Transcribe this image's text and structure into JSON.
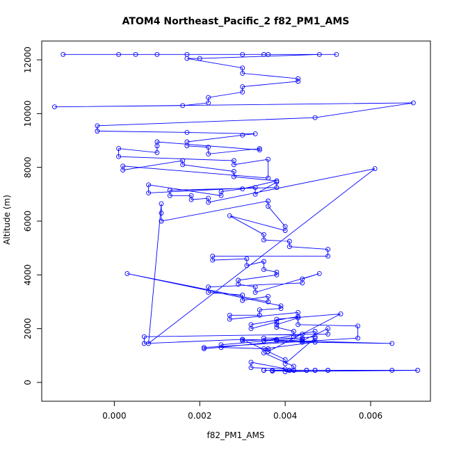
{
  "chart_data": {
    "type": "scatter",
    "title": "ATOM4 Northeast_Pacific_2 f82_PM1_AMS",
    "xlabel": "f82_PM1_AMS",
    "ylabel": "Altitude (m)",
    "xlim": [
      -0.0017,
      0.0074
    ],
    "ylim": [
      -700,
      12700
    ],
    "xticks": [
      0.0,
      0.002,
      0.004,
      0.006
    ],
    "xtick_labels": [
      "0.000",
      "0.002",
      "0.004",
      "0.006"
    ],
    "yticks": [
      0,
      2000,
      4000,
      6000,
      8000,
      10000,
      12000
    ],
    "ytick_labels": [
      "0",
      "2000",
      "4000",
      "6000",
      "8000",
      "10000",
      "12000"
    ],
    "grid": false,
    "legend": "none",
    "color": "#0000ff",
    "marker": "open-circle",
    "connected": true,
    "series": [
      {
        "x": [
          -0.0012,
          0.0001,
          0.0005,
          0.001,
          0.0017,
          0.003,
          0.0035,
          0.0036,
          0.0052,
          0.0048,
          0.002,
          0.0017,
          0.003,
          0.003,
          0.0043,
          0.0043,
          0.003,
          0.003,
          0.0022,
          0.0022,
          0.0016,
          -0.0014,
          0.007,
          0.0047,
          -0.0004,
          -0.0004,
          0.0017,
          0.0033,
          0.003,
          0.0017,
          0.0017,
          0.0022,
          0.0022,
          0.0034,
          0.0034,
          0.001,
          0.001,
          0.001,
          0.0001,
          0.0001,
          0.0028,
          0.0028,
          0.0036,
          0.0036,
          0.0002,
          0.0002,
          0.0016,
          0.0016,
          0.0028,
          0.0028,
          0.0038,
          0.003,
          0.0025,
          0.0025,
          0.0008,
          0.0008,
          0.0033,
          0.0033,
          0.0038,
          0.0038,
          0.0013,
          0.0013,
          0.0018,
          0.0018,
          0.0022,
          0.0022,
          0.0061,
          0.0008,
          0.0011,
          0.0011,
          0.0011,
          0.0036,
          0.0036,
          0.004,
          0.004,
          0.0027,
          0.0035,
          0.0035,
          0.0041,
          0.0041,
          0.005,
          0.005,
          0.0023,
          0.0023,
          0.0031,
          0.0031,
          0.0035,
          0.0035,
          0.0038,
          0.0038,
          0.0029,
          0.0029,
          0.0033,
          0.0033,
          0.0048,
          0.0044,
          0.0044,
          0.0022,
          0.0022,
          0.003,
          0.003,
          0.0036,
          0.0036,
          0.0003,
          0.0039,
          0.0039,
          0.0034,
          0.0034,
          0.0027,
          0.0027,
          0.0043,
          0.0043,
          0.0032,
          0.0032,
          0.0038,
          0.0038,
          0.0042,
          0.0042,
          0.0044,
          0.0044,
          0.0035,
          0.0035,
          0.0047,
          0.0047,
          0.0025,
          0.0025,
          0.0036,
          0.0036,
          0.0053,
          0.0038,
          0.0038,
          0.0043,
          0.0043,
          0.0057,
          0.0057,
          0.0021,
          0.0021,
          0.0044,
          0.0044,
          0.005,
          0.005,
          0.0007,
          0.0007,
          0.003,
          0.003,
          0.0038,
          0.0038,
          0.0044,
          0.0044,
          0.0065,
          0.003,
          0.003,
          0.004,
          0.004,
          0.0047,
          0.0047,
          0.0035,
          0.0035,
          0.0042,
          0.0042,
          0.0032,
          0.0032,
          0.004,
          0.004,
          0.0071,
          0.0065,
          0.0037,
          0.0037,
          0.0047,
          0.0047,
          0.0042,
          0.0042,
          0.0035,
          0.0035,
          0.0041,
          0.0041,
          0.0045,
          0.0045,
          0.005,
          0.005
        ],
        "y": [
          12200,
          12200,
          12200,
          12200,
          12200,
          12200,
          12200,
          12200,
          12200,
          12200,
          12050,
          12050,
          11700,
          11500,
          11300,
          11200,
          11000,
          10800,
          10600,
          10400,
          10300,
          10250,
          10400,
          9850,
          9550,
          9350,
          9300,
          9250,
          9200,
          8950,
          8800,
          8750,
          8500,
          8700,
          8650,
          8950,
          8800,
          8550,
          8700,
          8400,
          8250,
          8100,
          8300,
          7600,
          8050,
          7900,
          8250,
          8100,
          7850,
          7650,
          7500,
          7200,
          7100,
          6950,
          7350,
          7050,
          7250,
          7000,
          7450,
          7250,
          7150,
          6950,
          6950,
          6800,
          6850,
          6700,
          7950,
          1450,
          6650,
          6300,
          6000,
          6750,
          6550,
          5800,
          5650,
          6200,
          5500,
          5300,
          5250,
          5050,
          4950,
          4700,
          4700,
          4550,
          4600,
          4350,
          4500,
          4200,
          4100,
          4000,
          3800,
          3650,
          3550,
          3350,
          4050,
          3850,
          3700,
          3550,
          3350,
          3250,
          3050,
          3200,
          3000,
          4050,
          2850,
          2750,
          2700,
          2500,
          2500,
          2350,
          2600,
          2450,
          2150,
          2000,
          2250,
          2050,
          1900,
          1700,
          1800,
          1650,
          1650,
          1550,
          1900,
          1700,
          1400,
          1300,
          1250,
          1150,
          2550,
          2350,
          2150,
          2400,
          2150,
          2100,
          1650,
          1300,
          1250,
          1600,
          1550,
          2000,
          1800,
          1700,
          1450,
          1600,
          1550,
          1600,
          1550,
          1500,
          1500,
          1450,
          1600,
          1600,
          850,
          700,
          1650,
          1500,
          1250,
          1100,
          600,
          450,
          750,
          550,
          500,
          400,
          450,
          450,
          450,
          420,
          450,
          450,
          450,
          450,
          450,
          450,
          450,
          450,
          450,
          450,
          450,
          450
        ]
      }
    ]
  }
}
